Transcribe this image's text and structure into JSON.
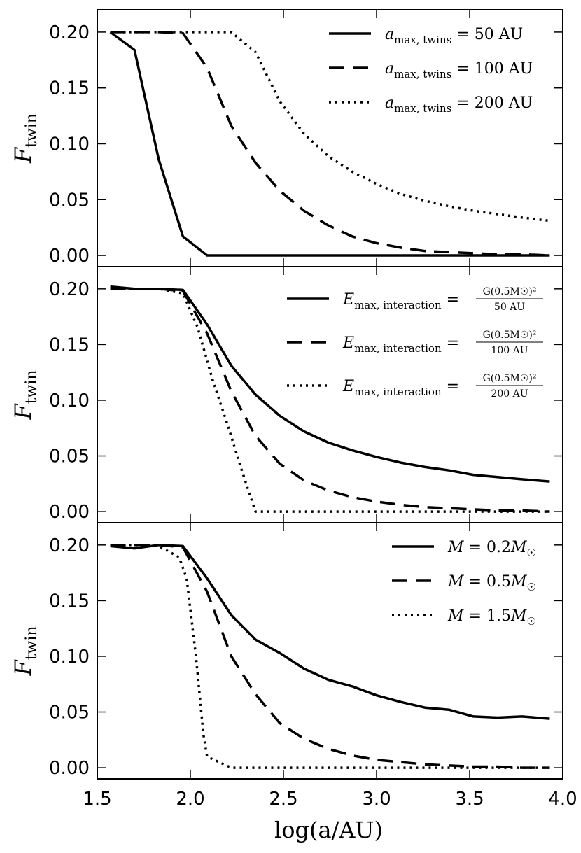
{
  "chart_data": [
    {
      "type": "line",
      "title": "",
      "xlabel": "",
      "ylabel": "F_twin",
      "ylabel_main": "F",
      "ylabel_sub": "twin",
      "xlim": [
        1.5,
        4.0
      ],
      "ylim": [
        -0.01,
        0.22
      ],
      "x_ticks": [
        1.5,
        2.0,
        2.5,
        3.0,
        3.5,
        4.0
      ],
      "y_ticks": [
        0.0,
        0.05,
        0.1,
        0.15,
        0.2
      ],
      "y_tick_labels": [
        "0.00",
        "0.05",
        "0.10",
        "0.15",
        "0.20"
      ],
      "legend_location": "top-right",
      "series": [
        {
          "name": "a_max, twins = 50 AU",
          "legend": {
            "main": "a",
            "sub": "max, twins",
            "rest": " = 50 AU"
          },
          "style": "solid",
          "x": [
            1.57,
            1.7,
            1.83,
            1.96,
            2.09,
            2.22,
            2.35,
            2.48,
            2.61,
            2.74,
            2.87,
            3.0,
            3.13,
            3.26,
            3.39,
            3.52,
            3.65,
            3.78,
            3.93
          ],
          "y": [
            0.2,
            0.184,
            0.086,
            0.017,
            0.0,
            0.0,
            0.0,
            0.0,
            0.0,
            0.0,
            0.0,
            0.0,
            0.0,
            0.0,
            0.0,
            0.0,
            0.0,
            0.0,
            0.0
          ]
        },
        {
          "name": "a_max, twins = 100 AU",
          "legend": {
            "main": "a",
            "sub": "max, twins",
            "rest": " = 100 AU"
          },
          "style": "dashed",
          "x": [
            1.57,
            1.7,
            1.83,
            1.96,
            2.09,
            2.22,
            2.35,
            2.48,
            2.61,
            2.74,
            2.87,
            3.0,
            3.13,
            3.26,
            3.39,
            3.52,
            3.65,
            3.78,
            3.93
          ],
          "y": [
            0.2,
            0.2,
            0.2,
            0.199,
            0.168,
            0.116,
            0.083,
            0.058,
            0.04,
            0.027,
            0.017,
            0.011,
            0.007,
            0.004,
            0.003,
            0.002,
            0.001,
            0.001,
            0.0
          ]
        },
        {
          "name": "a_max, twins = 200 AU",
          "legend": {
            "main": "a",
            "sub": "max, twins",
            "rest": " = 200 AU"
          },
          "style": "dotted",
          "x": [
            1.57,
            1.7,
            1.83,
            1.96,
            2.09,
            2.22,
            2.35,
            2.48,
            2.61,
            2.74,
            2.87,
            3.0,
            3.13,
            3.26,
            3.39,
            3.52,
            3.65,
            3.78,
            3.93
          ],
          "y": [
            0.2,
            0.2,
            0.2,
            0.2,
            0.2,
            0.2,
            0.182,
            0.138,
            0.109,
            0.089,
            0.075,
            0.064,
            0.055,
            0.049,
            0.044,
            0.04,
            0.037,
            0.034,
            0.031
          ]
        }
      ]
    },
    {
      "type": "line",
      "title": "",
      "xlabel": "",
      "ylabel": "F_twin",
      "ylabel_main": "F",
      "ylabel_sub": "twin",
      "xlim": [
        1.5,
        4.0
      ],
      "ylim": [
        -0.01,
        0.22
      ],
      "x_ticks": [
        1.5,
        2.0,
        2.5,
        3.0,
        3.5,
        4.0
      ],
      "y_ticks": [
        0.0,
        0.05,
        0.1,
        0.15,
        0.2
      ],
      "y_tick_labels": [
        "0.00",
        "0.05",
        "0.10",
        "0.15",
        "0.20"
      ],
      "legend_location": "top-right",
      "series": [
        {
          "name": "E_max, interaction = G(0.5M_sun)^2 / 50 AU",
          "legend": {
            "main": "E",
            "sub": "max, interaction",
            "rest": " = ",
            "frac_num": "G(0.5M☉)²",
            "frac_den": "50 AU"
          },
          "style": "solid",
          "x": [
            1.57,
            1.7,
            1.83,
            1.96,
            2.09,
            2.22,
            2.35,
            2.48,
            2.61,
            2.74,
            2.87,
            3.0,
            3.13,
            3.26,
            3.39,
            3.52,
            3.65,
            3.78,
            3.93
          ],
          "y": [
            0.202,
            0.2,
            0.2,
            0.199,
            0.168,
            0.131,
            0.105,
            0.086,
            0.072,
            0.062,
            0.055,
            0.049,
            0.044,
            0.04,
            0.037,
            0.033,
            0.031,
            0.029,
            0.027
          ]
        },
        {
          "name": "E_max, interaction = G(0.5M_sun)^2 / 100 AU",
          "legend": {
            "main": "E",
            "sub": "max, interaction",
            "rest": " = ",
            "frac_num": "G(0.5M☉)²",
            "frac_den": "100 AU"
          },
          "style": "dashed",
          "x": [
            1.57,
            1.7,
            1.83,
            1.96,
            2.09,
            2.22,
            2.35,
            2.48,
            2.61,
            2.74,
            2.87,
            3.0,
            3.13,
            3.26,
            3.39,
            3.52,
            3.65,
            3.78,
            3.93
          ],
          "y": [
            0.2,
            0.2,
            0.2,
            0.198,
            0.16,
            0.108,
            0.068,
            0.043,
            0.028,
            0.019,
            0.013,
            0.009,
            0.006,
            0.004,
            0.003,
            0.002,
            0.001,
            0.001,
            0.0
          ]
        },
        {
          "name": "E_max, interaction = G(0.5M_sun)^2 / 200 AU",
          "legend": {
            "main": "E",
            "sub": "max, interaction",
            "rest": " = ",
            "frac_num": "G(0.5M☉)²",
            "frac_den": "200 AU"
          },
          "style": "dotted",
          "x": [
            1.57,
            1.7,
            1.83,
            1.96,
            2.04,
            2.12,
            2.2,
            2.28,
            2.35,
            2.48,
            2.61,
            2.74,
            2.87,
            3.0,
            3.13,
            3.26,
            3.39,
            3.52,
            3.65,
            3.78,
            3.93
          ],
          "y": [
            0.2,
            0.2,
            0.2,
            0.196,
            0.165,
            0.118,
            0.078,
            0.035,
            0.0,
            0.0,
            0.0,
            0.0,
            0.0,
            0.0,
            0.0,
            0.0,
            0.0,
            0.0,
            0.0,
            0.0,
            0.0
          ]
        }
      ]
    },
    {
      "type": "line",
      "title": "",
      "xlabel": "log(a/AU)",
      "ylabel": "F_twin",
      "ylabel_main": "F",
      "ylabel_sub": "twin",
      "xlim": [
        1.5,
        4.0
      ],
      "ylim": [
        -0.01,
        0.22
      ],
      "x_ticks": [
        1.5,
        2.0,
        2.5,
        3.0,
        3.5,
        4.0
      ],
      "x_tick_labels": [
        "1.5",
        "2.0",
        "2.5",
        "3.0",
        "3.5",
        "4.0"
      ],
      "y_ticks": [
        0.0,
        0.05,
        0.1,
        0.15,
        0.2
      ],
      "y_tick_labels": [
        "0.00",
        "0.05",
        "0.10",
        "0.15",
        "0.20"
      ],
      "legend_location": "top-right",
      "series": [
        {
          "name": "M = 0.2 M_sun",
          "legend": {
            "main": "M",
            "rest": " = 0.2",
            "suffix": "M",
            "suffix_sub": "☉"
          },
          "style": "solid",
          "x": [
            1.57,
            1.7,
            1.83,
            1.96,
            2.09,
            2.22,
            2.35,
            2.48,
            2.61,
            2.74,
            2.87,
            3.0,
            3.13,
            3.26,
            3.39,
            3.52,
            3.65,
            3.78,
            3.93
          ],
          "y": [
            0.199,
            0.197,
            0.2,
            0.199,
            0.17,
            0.137,
            0.115,
            0.103,
            0.089,
            0.079,
            0.073,
            0.065,
            0.059,
            0.054,
            0.052,
            0.046,
            0.045,
            0.046,
            0.044
          ]
        },
        {
          "name": "M = 0.5 M_sun",
          "legend": {
            "main": "M",
            "rest": " = 0.5",
            "suffix": "M",
            "suffix_sub": "☉"
          },
          "style": "dashed",
          "x": [
            1.57,
            1.7,
            1.83,
            1.96,
            2.09,
            2.22,
            2.35,
            2.48,
            2.61,
            2.74,
            2.87,
            3.0,
            3.13,
            3.26,
            3.39,
            3.52,
            3.65,
            3.78,
            3.93
          ],
          "y": [
            0.2,
            0.2,
            0.2,
            0.198,
            0.158,
            0.1,
            0.066,
            0.04,
            0.026,
            0.017,
            0.011,
            0.007,
            0.005,
            0.003,
            0.002,
            0.001,
            0.001,
            0.0,
            0.0
          ]
        },
        {
          "name": "M = 1.5 M_sun",
          "legend": {
            "main": "M",
            "rest": " = 1.5",
            "suffix": "M",
            "suffix_sub": "☉"
          },
          "style": "dotted",
          "x": [
            1.57,
            1.7,
            1.83,
            1.94,
            1.98,
            2.03,
            2.07,
            2.09,
            2.22,
            2.35,
            2.48,
            2.61,
            2.74,
            2.87,
            3.0,
            3.13,
            3.26,
            3.39,
            3.52,
            3.65,
            3.78,
            3.93
          ],
          "y": [
            0.2,
            0.2,
            0.199,
            0.189,
            0.17,
            0.1,
            0.03,
            0.01,
            0.0,
            0.0,
            0.0,
            0.0,
            0.0,
            0.0,
            0.0,
            0.0,
            0.0,
            0.0,
            0.0,
            0.0,
            0.0,
            0.0
          ]
        }
      ]
    }
  ]
}
